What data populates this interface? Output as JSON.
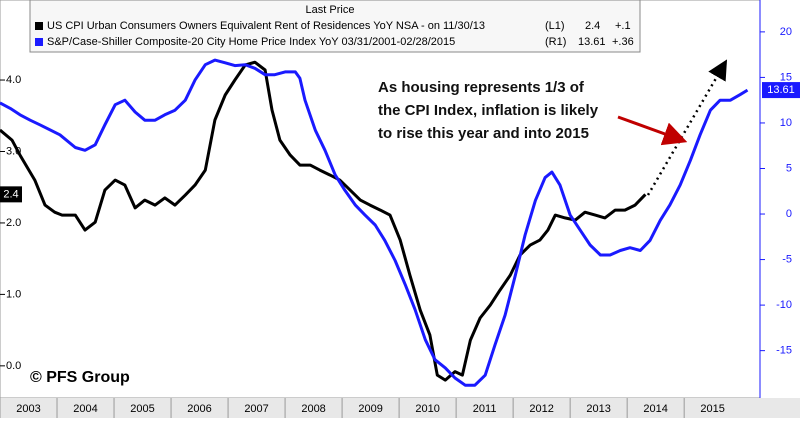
{
  "chart_data": {
    "type": "line",
    "legend_header": "Last Price",
    "annotation": [
      "As housing represents 1/3 of",
      "the CPI Index, inflation is likely",
      "to rise this year and into 2015"
    ],
    "copyright": "© PFS Group",
    "xlim": [
      2003,
      2016.33
    ],
    "xticks": [
      2003,
      2004,
      2005,
      2006,
      2007,
      2008,
      2009,
      2010,
      2011,
      2012,
      2013,
      2014,
      2015
    ],
    "ylim": [
      -0.45,
      5.12
    ],
    "yticks": [
      {
        "value": 0,
        "label": "0.0"
      },
      {
        "value": 1,
        "label": "1.0"
      },
      {
        "value": 2,
        "label": "2.0"
      },
      {
        "value": 3,
        "label": "3.0"
      },
      {
        "value": 4,
        "label": "4.0"
      }
    ],
    "y2lim": [
      -20.2,
      23.5
    ],
    "y2ticks": [
      -15,
      -10,
      -5,
      0,
      5,
      10,
      15,
      20
    ],
    "series": [
      {
        "name": "US CPI Urban Consumers Owners Equivalent Rent of Residences YoY NSA  -  on 11/30/13",
        "axis_label": "(L1)",
        "last_value": 2.4,
        "change": "+.1",
        "color": "#000000",
        "axis": "y",
        "x": [
          2003.0,
          2003.21,
          2003.35,
          2003.61,
          2003.79,
          2003.96,
          2004.09,
          2004.32,
          2004.49,
          2004.67,
          2004.84,
          2005.02,
          2005.19,
          2005.37,
          2005.54,
          2005.72,
          2005.89,
          2006.07,
          2006.25,
          2006.42,
          2006.6,
          2006.77,
          2006.95,
          2007.12,
          2007.3,
          2007.47,
          2007.65,
          2007.77,
          2007.91,
          2008.09,
          2008.26,
          2008.44,
          2008.61,
          2008.79,
          2008.96,
          2009.14,
          2009.32,
          2009.49,
          2009.67,
          2009.84,
          2010.02,
          2010.19,
          2010.37,
          2010.54,
          2010.67,
          2010.81,
          2010.98,
          2011.11,
          2011.25,
          2011.42,
          2011.6,
          2011.77,
          2011.95,
          2012.12,
          2012.3,
          2012.47,
          2012.61,
          2012.74,
          2012.91,
          2013.09,
          2013.26,
          2013.44,
          2013.61,
          2013.79,
          2013.96,
          2014.14,
          2014.32
        ],
        "values": [
          3.3,
          3.16,
          2.95,
          2.6,
          2.25,
          2.15,
          2.11,
          2.11,
          1.9,
          2.01,
          2.46,
          2.6,
          2.53,
          2.21,
          2.32,
          2.25,
          2.35,
          2.25,
          2.39,
          2.53,
          2.74,
          3.44,
          3.79,
          4.0,
          4.21,
          4.25,
          4.14,
          3.58,
          3.16,
          2.95,
          2.81,
          2.81,
          2.74,
          2.67,
          2.6,
          2.46,
          2.32,
          2.25,
          2.18,
          2.11,
          1.76,
          1.27,
          0.78,
          0.43,
          -0.13,
          -0.2,
          -0.08,
          -0.13,
          0.36,
          0.67,
          0.85,
          1.06,
          1.27,
          1.55,
          1.69,
          1.76,
          1.9,
          2.11,
          2.07,
          2.04,
          2.15,
          2.11,
          2.07,
          2.18,
          2.18,
          2.25,
          2.4
        ]
      },
      {
        "name": "S&P/Case-Shiller Composite-20 City Home Price Index YoY 03/31/2001-02/28/2015",
        "axis_label": "(R1)",
        "last_value": 13.61,
        "change": "+.36",
        "color": "#1a1aff",
        "axis": "y2",
        "x": [
          2003.0,
          2003.18,
          2003.35,
          2003.53,
          2003.7,
          2004.05,
          2004.32,
          2004.49,
          2004.67,
          2004.84,
          2005.02,
          2005.19,
          2005.37,
          2005.54,
          2005.72,
          2005.89,
          2006.07,
          2006.25,
          2006.42,
          2006.6,
          2006.77,
          2006.95,
          2007.12,
          2007.3,
          2007.47,
          2007.65,
          2007.82,
          2008.0,
          2008.18,
          2008.26,
          2008.35,
          2008.53,
          2008.7,
          2008.88,
          2009.05,
          2009.23,
          2009.4,
          2009.58,
          2009.75,
          2009.93,
          2010.11,
          2010.28,
          2010.46,
          2010.63,
          2010.81,
          2010.98,
          2011.16,
          2011.33,
          2011.51,
          2011.68,
          2011.86,
          2012.04,
          2012.21,
          2012.39,
          2012.56,
          2012.68,
          2012.82,
          2013.0,
          2013.18,
          2013.35,
          2013.53,
          2013.7,
          2013.88,
          2014.05,
          2014.23,
          2014.4,
          2014.58,
          2014.75,
          2014.93,
          2015.11,
          2015.28,
          2015.46,
          2015.63,
          2015.81,
          2015.98,
          2016.11
        ],
        "values": [
          12.2,
          11.6,
          10.9,
          10.3,
          9.8,
          8.7,
          7.3,
          7.0,
          7.6,
          9.8,
          12.0,
          12.5,
          11.2,
          10.3,
          10.3,
          10.9,
          11.4,
          12.5,
          14.7,
          16.4,
          16.9,
          16.6,
          16.3,
          16.4,
          16.0,
          15.3,
          15.3,
          15.6,
          15.6,
          14.9,
          12.5,
          9.2,
          7.0,
          4.3,
          2.6,
          1.0,
          -0.1,
          -1.2,
          -2.9,
          -5.1,
          -7.8,
          -10.5,
          -13.8,
          -16.0,
          -16.9,
          -18.0,
          -18.8,
          -18.8,
          -17.7,
          -14.4,
          -11.1,
          -6.7,
          -2.3,
          1.5,
          4.0,
          4.6,
          3.2,
          -0.1,
          -1.8,
          -3.4,
          -4.5,
          -4.5,
          -4.0,
          -3.7,
          -4.0,
          -2.9,
          -0.7,
          1.0,
          3.2,
          5.9,
          8.7,
          11.4,
          12.5,
          12.5,
          13.1,
          13.61
        ]
      }
    ]
  }
}
